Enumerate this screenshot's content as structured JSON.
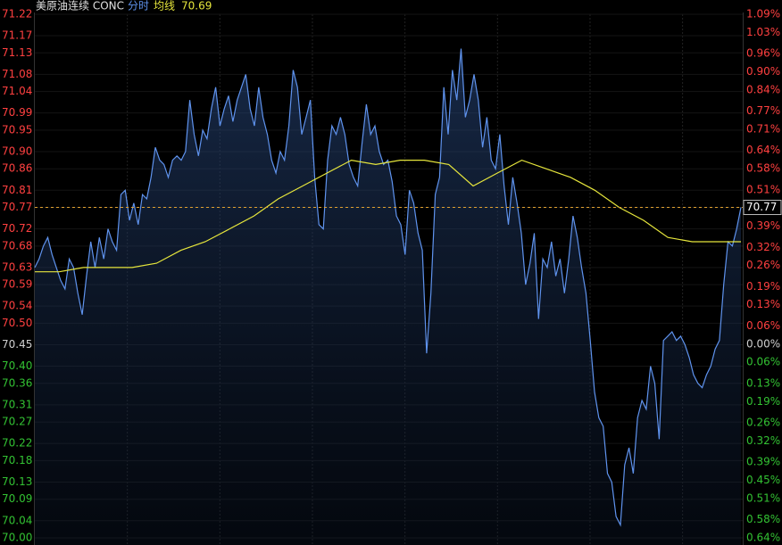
{
  "chart_data": {
    "type": "line",
    "title": "美原油连续 CONC",
    "legend_value": 70.69,
    "last_price": 70.77,
    "up_color": "#ff4040",
    "down_color": "#33c233",
    "flat_color": "#cfcfcf",
    "grid": true,
    "ylim": [
      70.0,
      71.22
    ],
    "yticks": [
      71.22,
      71.17,
      71.13,
      71.08,
      71.04,
      70.99,
      70.95,
      {
        "value": 70.9,
        "label": "70.90"
      },
      70.86,
      70.81,
      70.77,
      70.72,
      70.68,
      70.63,
      70.59,
      70.54,
      {
        "value": 70.5,
        "label": "70.50"
      },
      70.45,
      {
        "value": 70.4,
        "label": "70.40"
      },
      70.36,
      70.31,
      70.27,
      70.22,
      70.18,
      70.13,
      70.09,
      70.04,
      {
        "value": 70.0,
        "label": "70.00"
      }
    ],
    "y2lim": [
      -0.64,
      1.09
    ],
    "y2ticks": [
      {
        "value": 1.09,
        "label": "1.09%"
      },
      {
        "value": 1.03,
        "label": "1.03%"
      },
      {
        "value": 0.96,
        "label": "0.96%"
      },
      {
        "value": 0.9,
        "label": "0.90%"
      },
      {
        "value": 0.84,
        "label": "0.84%"
      },
      {
        "value": 0.77,
        "label": "0.77%"
      },
      {
        "value": 0.71,
        "label": "0.71%"
      },
      {
        "value": 0.64,
        "label": "0.64%"
      },
      {
        "value": 0.58,
        "label": "0.58%"
      },
      {
        "value": 0.51,
        "label": "0.51%"
      },
      {
        "value": 0.45,
        "label": "0.45%"
      },
      {
        "value": 0.39,
        "label": "0.39%"
      },
      {
        "value": 0.32,
        "label": "0.32%"
      },
      {
        "value": 0.26,
        "label": "0.26%"
      },
      {
        "value": 0.19,
        "label": "0.19%"
      },
      {
        "value": 0.13,
        "label": "0.13%"
      },
      {
        "value": 0.06,
        "label": "0.06%"
      },
      {
        "value": 0,
        "label": "0.00%"
      },
      {
        "value": -0.06,
        "label": "0.06%"
      },
      {
        "value": -0.13,
        "label": "0.13%"
      },
      {
        "value": -0.19,
        "label": "0.19%"
      },
      {
        "value": -0.26,
        "label": "0.26%"
      },
      {
        "value": -0.32,
        "label": "0.32%"
      },
      {
        "value": -0.39,
        "label": "0.39%"
      },
      {
        "value": -0.45,
        "label": "0.45%"
      },
      {
        "value": -0.51,
        "label": "0.51%"
      },
      {
        "value": -0.58,
        "label": "0.58%"
      },
      {
        "value": -0.64,
        "label": "0.64%"
      }
    ],
    "series": [
      {
        "name": "分时",
        "color": "#5f93ee",
        "values": [
          70.63,
          70.65,
          70.68,
          70.7,
          70.66,
          70.63,
          70.6,
          70.58,
          70.65,
          70.63,
          70.57,
          70.52,
          70.61,
          70.69,
          70.63,
          70.7,
          70.65,
          70.72,
          70.69,
          70.67,
          70.8,
          70.81,
          70.74,
          70.78,
          70.73,
          70.8,
          70.79,
          70.84,
          70.91,
          70.88,
          70.87,
          70.84,
          70.88,
          70.89,
          70.88,
          70.9,
          71.02,
          70.94,
          70.89,
          70.95,
          70.93,
          71.0,
          71.05,
          70.96,
          71.0,
          71.03,
          70.97,
          71.02,
          71.05,
          71.08,
          71.0,
          70.96,
          71.05,
          70.98,
          70.94,
          70.88,
          70.85,
          70.9,
          70.88,
          70.96,
          71.09,
          71.05,
          70.94,
          70.98,
          71.02,
          70.84,
          70.73,
          70.72,
          70.88,
          70.96,
          70.94,
          70.98,
          70.94,
          70.87,
          70.84,
          70.82,
          70.92,
          71.01,
          70.94,
          70.96,
          70.9,
          70.87,
          70.88,
          70.83,
          70.75,
          70.73,
          70.66,
          70.81,
          70.78,
          70.71,
          70.67,
          70.43,
          70.57,
          70.8,
          70.84,
          71.05,
          70.94,
          71.09,
          71.02,
          71.14,
          70.98,
          71.02,
          71.08,
          71.02,
          70.91,
          70.98,
          70.88,
          70.86,
          70.94,
          70.82,
          70.73,
          70.84,
          70.78,
          70.71,
          70.59,
          70.64,
          70.71,
          70.51,
          70.65,
          70.63,
          70.69,
          70.61,
          70.65,
          70.57,
          70.65,
          70.75,
          70.7,
          70.63,
          70.57,
          70.46,
          70.34,
          70.28,
          70.26,
          70.15,
          70.13,
          70.05,
          70.03,
          70.17,
          70.21,
          70.15,
          70.28,
          70.32,
          70.3,
          70.4,
          70.36,
          70.23,
          70.46,
          70.47,
          70.48,
          70.46,
          70.47,
          70.45,
          70.42,
          70.38,
          70.36,
          70.35,
          70.38,
          70.4,
          70.44,
          70.46,
          70.59,
          70.69,
          70.68,
          70.72,
          70.77
        ]
      },
      {
        "name": "均线",
        "color": "#e6e63c",
        "values": [
          70.62,
          70.62,
          70.63,
          70.63,
          70.63,
          70.64,
          70.67,
          70.69,
          70.72,
          70.75,
          70.79,
          70.82,
          70.85,
          70.88,
          70.87,
          70.88,
          70.88,
          70.87,
          70.82,
          70.85,
          70.88,
          70.86,
          70.84,
          70.81,
          70.77,
          70.74,
          70.7,
          70.69,
          70.69,
          70.69
        ]
      }
    ]
  }
}
